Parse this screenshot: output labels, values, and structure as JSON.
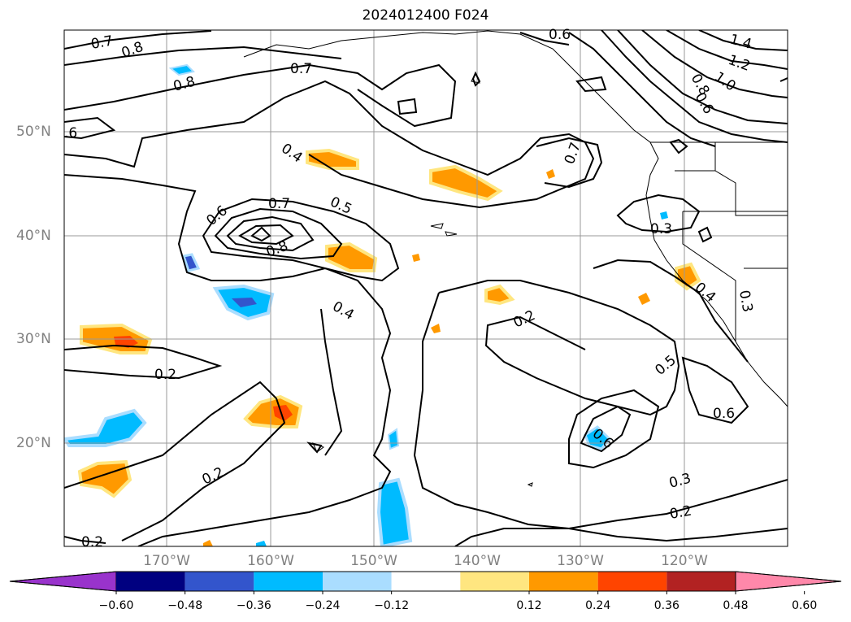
{
  "title": "2024012400 F024",
  "lat_labels": [
    "50°N",
    "40°N",
    "30°N",
    "20°N"
  ],
  "lon_labels": [
    "170°W",
    "160°W",
    "150°W",
    "140°W",
    "130°W",
    "120°W"
  ],
  "colorbar": {
    "ticks": [
      "−0.60",
      "−0.48",
      "−0.36",
      "−0.24",
      "−0.12",
      "0.12",
      "0.24",
      "0.36",
      "0.48",
      "0.60"
    ],
    "colors": [
      "#9933cc",
      "#000080",
      "#3355cc",
      "#00bbff",
      "#aaddff",
      "#ffffff",
      "#ffe680",
      "#ff9900",
      "#ff4400",
      "#b22222",
      "#ff88aa"
    ]
  },
  "contour_labels": [
    {
      "text": "0.7"
    },
    {
      "text": "0.8"
    },
    {
      "text": "0.8"
    },
    {
      "text": "0.7"
    },
    {
      "text": "0.6"
    },
    {
      "text": "1.4"
    },
    {
      "text": "1.2"
    },
    {
      "text": "1.0"
    },
    {
      "text": "0.8"
    },
    {
      "text": "0.6"
    },
    {
      "text": ".6"
    },
    {
      "text": "0.4"
    },
    {
      "text": "0.7"
    },
    {
      "text": "0.5"
    },
    {
      "text": "0.6"
    },
    {
      "text": "0.8"
    },
    {
      "text": "0.4"
    },
    {
      "text": "0.7"
    },
    {
      "text": "0.3"
    },
    {
      "text": "0.4"
    },
    {
      "text": "0.3"
    },
    {
      "text": "0.2"
    },
    {
      "text": "0.2"
    },
    {
      "text": "0.5"
    },
    {
      "text": "0.6"
    },
    {
      "text": "0.6"
    },
    {
      "text": "0.2"
    },
    {
      "text": "0.3"
    },
    {
      "text": "0.2"
    },
    {
      "text": "0.2"
    }
  ]
}
